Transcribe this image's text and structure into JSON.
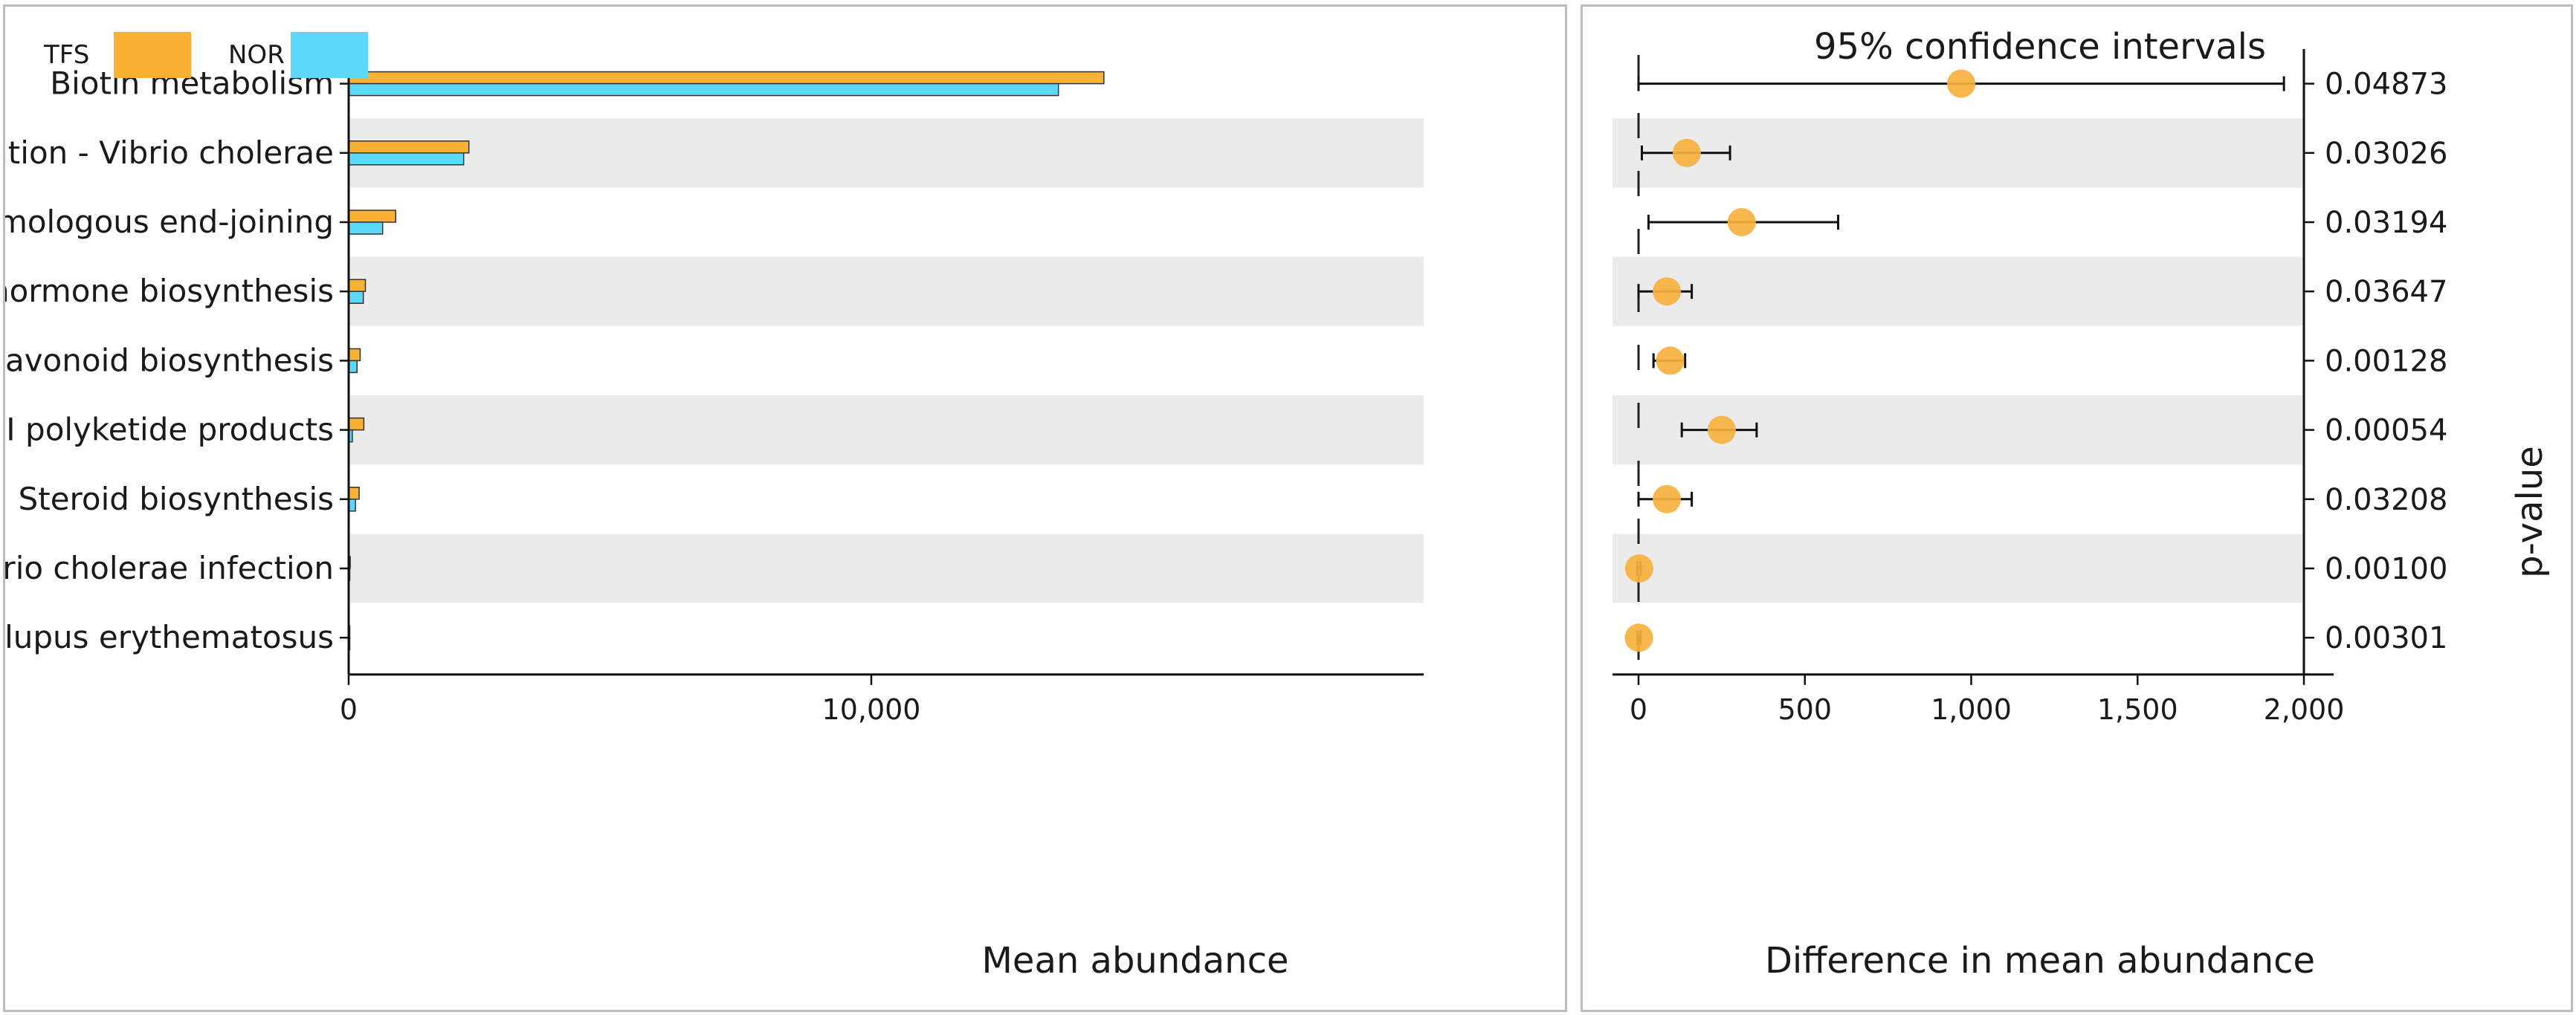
{
  "colors": {
    "TFS": "#f9b234",
    "NOR": "#5ed8f8",
    "band": "#ebebeb",
    "axis": "#111111",
    "dot": "#f6b13e"
  },
  "chart_data": [
    {
      "type": "bar",
      "orientation": "horizontal",
      "title": "",
      "xlabel": "Mean abundance",
      "ylabel": "",
      "xlim": [
        0,
        16000
      ],
      "xticks": [
        0,
        10000
      ],
      "xtick_labels": [
        "0",
        "10,000"
      ],
      "legend": [
        {
          "name": "TFS",
          "color": "#f9b234"
        },
        {
          "name": "NOR",
          "color": "#5ed8f8"
        }
      ],
      "legend_position": "top-left",
      "categories": [
        "Biotin metabolism",
        "Biofilm formation - Vibrio cholerae",
        "Non-homologous end-joining",
        "Steroid hormone biosynthesis",
        "Flavonoid biosynthesis",
        "Biosynthesis of type II polyketide products",
        "Steroid biosynthesis",
        "Vibrio cholerae infection",
        "Systemic lupus erythematosus"
      ],
      "series": [
        {
          "name": "TFS",
          "values": [
            14450,
            2300,
            900,
            320,
            220,
            290,
            200,
            30,
            15
          ]
        },
        {
          "name": "NOR",
          "values": [
            13580,
            2200,
            650,
            280,
            160,
            70,
            130,
            20,
            10
          ]
        }
      ]
    },
    {
      "type": "scatter",
      "subtype": "confidence-interval",
      "title": "95% confidence intervals",
      "xlabel": "Difference in mean abundance",
      "ylabel": "p-value",
      "xlim": [
        -200,
        2100
      ],
      "xticks": [
        0,
        500,
        1000,
        1500,
        2000
      ],
      "xtick_labels": [
        "0",
        "500",
        "1,000",
        "1,500",
        "2,000"
      ],
      "categories": [
        "Biotin metabolism",
        "Biofilm formation - Vibrio cholerae",
        "Non-homologous end-joining",
        "Steroid hormone biosynthesis",
        "Flavonoid biosynthesis",
        "Biosynthesis of type II polyketide products",
        "Steroid biosynthesis",
        "Vibrio cholerae infection",
        "Systemic lupus erythematosus"
      ],
      "estimates": [
        970,
        145,
        310,
        85,
        95,
        250,
        85,
        2,
        1
      ],
      "ci_lower": [
        0,
        10,
        30,
        0,
        45,
        130,
        0,
        -3,
        -3
      ],
      "ci_upper": [
        1940,
        275,
        600,
        160,
        140,
        355,
        160,
        6,
        6
      ],
      "p_values": [
        "0.04873",
        "0.03026",
        "0.03194",
        "0.03647",
        "0.00128",
        "0.00054",
        "0.03208",
        "0.00100",
        "0.00301"
      ],
      "reference_line": 0
    }
  ]
}
